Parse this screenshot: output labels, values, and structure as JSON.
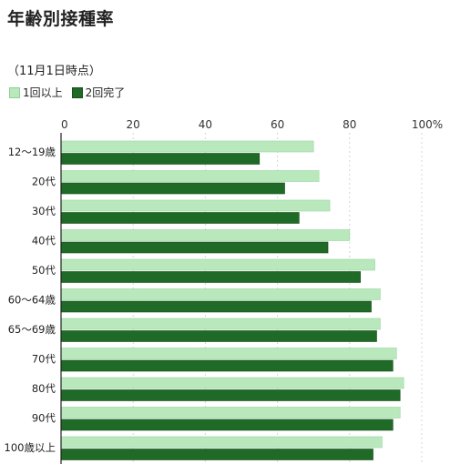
{
  "title": "年齢別接種率",
  "subtitle": "（11月1日時点）",
  "legend": [
    {
      "label": "1回以上",
      "color": "#b9e8bd"
    },
    {
      "label": "2回完了",
      "color": "#1f6a26"
    }
  ],
  "chart_data": {
    "type": "bar",
    "orientation": "horizontal",
    "title": "年齢別接種率",
    "subtitle": "（11月1日時点）",
    "categories": [
      "12〜19歳",
      "20代",
      "30代",
      "40代",
      "50代",
      "60〜64歳",
      "65〜69歳",
      "70代",
      "80代",
      "90代",
      "100歳以上"
    ],
    "series": [
      {
        "name": "1回以上",
        "color": "#b9e8bd",
        "values": [
          70,
          71.5,
          74.5,
          80,
          87,
          88.5,
          88.5,
          93,
          95,
          94,
          89
        ]
      },
      {
        "name": "2回完了",
        "color": "#1f6a26",
        "values": [
          55,
          62,
          66,
          74,
          83,
          86,
          87.5,
          92,
          94,
          92,
          86.5
        ]
      }
    ],
    "xlim": [
      0,
      100
    ],
    "xticks": [
      "0",
      "20",
      "40",
      "60",
      "80",
      "100%"
    ],
    "grid": true,
    "legend_position": "top-left"
  }
}
